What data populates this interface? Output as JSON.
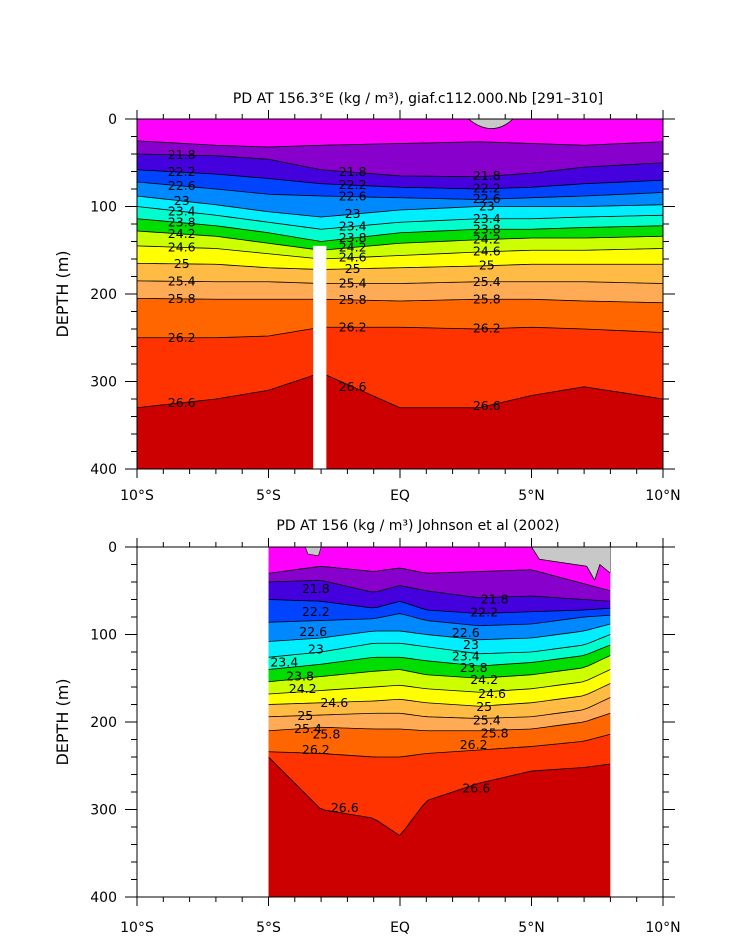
{
  "chart_data": [
    {
      "type": "contour",
      "title": "PD AT 156.3°E (kg / m³), giaf.c112.000.Nb [291–310]",
      "ylabel": "DEPTH (m)",
      "xlim": [
        -10,
        10
      ],
      "ylim": [
        400,
        0
      ],
      "x_ticks": [
        -10,
        -5,
        0,
        5,
        10
      ],
      "x_tick_labels": [
        "10°S",
        "5°S",
        "EQ",
        "5°N",
        "10°N"
      ],
      "y_ticks": [
        0,
        100,
        200,
        300,
        400
      ],
      "y_tick_labels": [
        "0",
        "100",
        "200",
        "300",
        "400"
      ],
      "data_coverage_x": [
        -10,
        10
      ],
      "missing_column_x": [
        -3.3,
        -2.8
      ],
      "missing_column_top_depth": 145,
      "contour_interval": 0.2,
      "contour_levels_labeled": [
        "21.8",
        "22.2",
        "22.6",
        "23",
        "23.4",
        "23.8",
        "24.2",
        "24.6",
        "25",
        "25.4",
        "25.8",
        "26.2",
        "26.6"
      ],
      "isopycnal_depths": [
        {
          "level": 21.4,
          "x": [
            -10,
            -7,
            -5,
            -3,
            0,
            3,
            5,
            7,
            10
          ],
          "depth": [
            25,
            30,
            32,
            30,
            28,
            26,
            28,
            30,
            26
          ]
        },
        {
          "level": 21.8,
          "x": [
            -10,
            -7,
            -5,
            -3,
            0,
            3,
            5,
            7,
            10
          ],
          "depth": [
            40,
            42,
            46,
            58,
            65,
            66,
            62,
            55,
            50
          ]
        },
        {
          "level": 22.2,
          "x": [
            -10,
            -7,
            -5,
            -3,
            0,
            3,
            5,
            7,
            10
          ],
          "depth": [
            58,
            63,
            68,
            74,
            78,
            80,
            78,
            74,
            70
          ]
        },
        {
          "level": 22.6,
          "x": [
            -10,
            -7,
            -5,
            -3,
            0,
            3,
            5,
            7,
            10
          ],
          "depth": [
            72,
            80,
            86,
            88,
            90,
            92,
            90,
            88,
            84
          ]
        },
        {
          "level": 23.0,
          "x": [
            -10,
            -7,
            -5,
            -3,
            0,
            3,
            5,
            7,
            10
          ],
          "depth": [
            88,
            98,
            106,
            112,
            104,
            100,
            100,
            100,
            98
          ]
        },
        {
          "level": 23.4,
          "x": [
            -10,
            -7,
            -5,
            -3,
            0,
            3,
            5,
            7,
            10
          ],
          "depth": [
            100,
            110,
            118,
            126,
            118,
            114,
            114,
            112,
            110
          ]
        },
        {
          "level": 23.8,
          "x": [
            -10,
            -7,
            -5,
            -3,
            0,
            3,
            5,
            7,
            10
          ],
          "depth": [
            114,
            122,
            130,
            140,
            130,
            126,
            126,
            124,
            122
          ]
        },
        {
          "level": 24.2,
          "x": [
            -10,
            -7,
            -5,
            -3,
            0,
            3,
            5,
            7,
            10
          ],
          "depth": [
            128,
            134,
            142,
            150,
            142,
            138,
            136,
            136,
            134
          ]
        },
        {
          "level": 24.6,
          "x": [
            -10,
            -7,
            -5,
            -3,
            0,
            3,
            5,
            7,
            10
          ],
          "depth": [
            145,
            148,
            154,
            160,
            156,
            152,
            150,
            150,
            148
          ]
        },
        {
          "level": 25.0,
          "x": [
            -10,
            -7,
            -5,
            -3,
            0,
            3,
            5,
            7,
            10
          ],
          "depth": [
            165,
            166,
            170,
            172,
            170,
            168,
            166,
            166,
            166
          ]
        },
        {
          "level": 25.4,
          "x": [
            -10,
            -7,
            -5,
            -3,
            0,
            3,
            5,
            7,
            10
          ],
          "depth": [
            185,
            186,
            186,
            188,
            188,
            186,
            186,
            186,
            188
          ]
        },
        {
          "level": 25.8,
          "x": [
            -10,
            -7,
            -5,
            -3,
            0,
            3,
            5,
            7,
            10
          ],
          "depth": [
            205,
            206,
            206,
            206,
            208,
            206,
            206,
            208,
            210
          ]
        },
        {
          "level": 26.2,
          "x": [
            -10,
            -7,
            -5,
            -3,
            0,
            3,
            5,
            7,
            10
          ],
          "depth": [
            250,
            250,
            248,
            238,
            238,
            240,
            238,
            240,
            244
          ]
        },
        {
          "level": 26.6,
          "x": [
            -10,
            -7,
            -5,
            -3,
            0,
            3,
            5,
            7,
            10
          ],
          "depth": [
            330,
            320,
            310,
            290,
            330,
            330,
            316,
            306,
            320
          ]
        }
      ]
    },
    {
      "type": "contour",
      "title": "PD AT 156 (kg / m³) Johnson et al (2002)",
      "ylabel": "DEPTH (m)",
      "xlim": [
        -10,
        10
      ],
      "ylim": [
        400,
        0
      ],
      "x_ticks": [
        -10,
        -5,
        0,
        5,
        10
      ],
      "x_tick_labels": [
        "10°S",
        "5°S",
        "EQ",
        "5°N",
        "10°N"
      ],
      "y_ticks": [
        0,
        100,
        200,
        300,
        400
      ],
      "y_tick_labels": [
        "0",
        "100",
        "200",
        "300",
        "400"
      ],
      "data_coverage_x": [
        -5,
        8
      ],
      "contour_interval": 0.2,
      "contour_levels_labeled": [
        "21.8",
        "22.2",
        "22.6",
        "23",
        "23.4",
        "23.8",
        "24.2",
        "24.6",
        "25",
        "25.4",
        "25.8",
        "26.2",
        "26.6"
      ],
      "isopycnal_depths": [
        {
          "level": 21.4,
          "x": [
            -5,
            -3,
            -1,
            0,
            1,
            3,
            5,
            7,
            8
          ],
          "depth": [
            30,
            22,
            28,
            24,
            30,
            28,
            26,
            42,
            50
          ]
        },
        {
          "level": 21.8,
          "x": [
            -5,
            -3,
            -1,
            0,
            1,
            3,
            5,
            7,
            8
          ],
          "depth": [
            40,
            38,
            52,
            44,
            50,
            58,
            56,
            60,
            62
          ]
        },
        {
          "level": 22.2,
          "x": [
            -5,
            -3,
            -1,
            0,
            1,
            3,
            5,
            7,
            8
          ],
          "depth": [
            60,
            62,
            70,
            62,
            72,
            76,
            74,
            72,
            70
          ]
        },
        {
          "level": 22.6,
          "x": [
            -5,
            -3,
            -1,
            0,
            1,
            3,
            5,
            7,
            8
          ],
          "depth": [
            86,
            84,
            82,
            76,
            84,
            90,
            88,
            80,
            78
          ]
        },
        {
          "level": 23.0,
          "x": [
            -5,
            -3,
            -1,
            0,
            1,
            3,
            5,
            7,
            8
          ],
          "depth": [
            108,
            104,
            96,
            96,
            100,
            106,
            104,
            96,
            88
          ]
        },
        {
          "level": 23.4,
          "x": [
            -5,
            -3,
            -1,
            0,
            1,
            3,
            5,
            7,
            8
          ],
          "depth": [
            126,
            120,
            110,
            110,
            114,
            122,
            120,
            112,
            100
          ]
        },
        {
          "level": 23.8,
          "x": [
            -5,
            -3,
            -1,
            0,
            1,
            3,
            5,
            7,
            8
          ],
          "depth": [
            140,
            134,
            126,
            126,
            130,
            136,
            132,
            124,
            112
          ]
        },
        {
          "level": 24.2,
          "x": [
            -5,
            -3,
            -1,
            0,
            1,
            3,
            5,
            7,
            8
          ],
          "depth": [
            154,
            148,
            142,
            140,
            146,
            150,
            146,
            138,
            124
          ]
        },
        {
          "level": 24.6,
          "x": [
            -5,
            -3,
            -1,
            0,
            1,
            3,
            5,
            7,
            8
          ],
          "depth": [
            168,
            164,
            160,
            158,
            162,
            166,
            162,
            154,
            140
          ]
        },
        {
          "level": 25.0,
          "x": [
            -5,
            -3,
            -1,
            0,
            1,
            3,
            5,
            7,
            8
          ],
          "depth": [
            180,
            178,
            176,
            174,
            178,
            182,
            178,
            170,
            156
          ]
        },
        {
          "level": 25.4,
          "x": [
            -5,
            -3,
            -1,
            0,
            1,
            3,
            5,
            7,
            8
          ],
          "depth": [
            194,
            192,
            190,
            190,
            194,
            196,
            194,
            186,
            172
          ]
        },
        {
          "level": 25.8,
          "x": [
            -5,
            -3,
            -1,
            0,
            1,
            3,
            5,
            7,
            8
          ],
          "depth": [
            210,
            206,
            208,
            208,
            210,
            210,
            208,
            200,
            190
          ]
        },
        {
          "level": 26.2,
          "x": [
            -5,
            -3,
            -1,
            0,
            1,
            3,
            5,
            7,
            8
          ],
          "depth": [
            234,
            236,
            240,
            240,
            236,
            232,
            228,
            222,
            214
          ]
        },
        {
          "level": 26.6,
          "x": [
            -5,
            -3,
            -1,
            0,
            1,
            3,
            5,
            7,
            8
          ],
          "depth": [
            240,
            300,
            310,
            330,
            290,
            270,
            256,
            252,
            248
          ]
        }
      ],
      "label_positions": [
        {
          "text": "21.8",
          "x": -3.2,
          "depth": 48
        },
        {
          "text": "22.2",
          "x": -3.2,
          "depth": 74
        },
        {
          "text": "22.6",
          "x": -3.3,
          "depth": 97
        },
        {
          "text": "23",
          "x": -3.2,
          "depth": 117
        },
        {
          "text": "23.4",
          "x": -4.4,
          "depth": 132
        },
        {
          "text": "23.8",
          "x": -3.8,
          "depth": 148
        },
        {
          "text": "24.2",
          "x": -3.7,
          "depth": 162
        },
        {
          "text": "24.6",
          "x": -2.5,
          "depth": 178
        },
        {
          "text": "25",
          "x": -3.6,
          "depth": 193
        },
        {
          "text": "25.4",
          "x": -3.5,
          "depth": 208
        },
        {
          "text": "25.8",
          "x": -2.8,
          "depth": 214
        },
        {
          "text": "26.2",
          "x": -3.2,
          "depth": 232
        },
        {
          "text": "26.6",
          "x": -2.1,
          "depth": 298
        },
        {
          "text": "21.8",
          "x": 3.6,
          "depth": 60
        },
        {
          "text": "22.2",
          "x": 3.2,
          "depth": 75
        },
        {
          "text": "22.6",
          "x": 2.5,
          "depth": 98
        },
        {
          "text": "23",
          "x": 2.7,
          "depth": 112
        },
        {
          "text": "23.4",
          "x": 2.5,
          "depth": 125
        },
        {
          "text": "23.8",
          "x": 2.8,
          "depth": 138
        },
        {
          "text": "24.2",
          "x": 3.2,
          "depth": 152
        },
        {
          "text": "24.6",
          "x": 3.5,
          "depth": 168
        },
        {
          "text": "25",
          "x": 3.2,
          "depth": 183
        },
        {
          "text": "25.4",
          "x": 3.3,
          "depth": 198
        },
        {
          "text": "25.8",
          "x": 3.6,
          "depth": 213
        },
        {
          "text": "26.2",
          "x": 2.8,
          "depth": 226
        },
        {
          "text": "26.6",
          "x": 2.9,
          "depth": 276
        }
      ]
    }
  ],
  "colors": {
    "density_ramp": [
      "#ff00ff",
      "#cc00dd",
      "#8800cc",
      "#4400dd",
      "#0000ff",
      "#0044ff",
      "#0088ff",
      "#00bbff",
      "#00eeff",
      "#00ffcc",
      "#00ee66",
      "#00dd00",
      "#66ee00",
      "#ccff00",
      "#ffff00",
      "#ffdd00",
      "#ffbb44",
      "#ffaa55",
      "#ff8800",
      "#ff6600",
      "#ff3300",
      "#ee0000",
      "#cc0000"
    ],
    "upper_blob": "#c8c8c8",
    "missing": "#ffffff",
    "axis": "#000000"
  }
}
